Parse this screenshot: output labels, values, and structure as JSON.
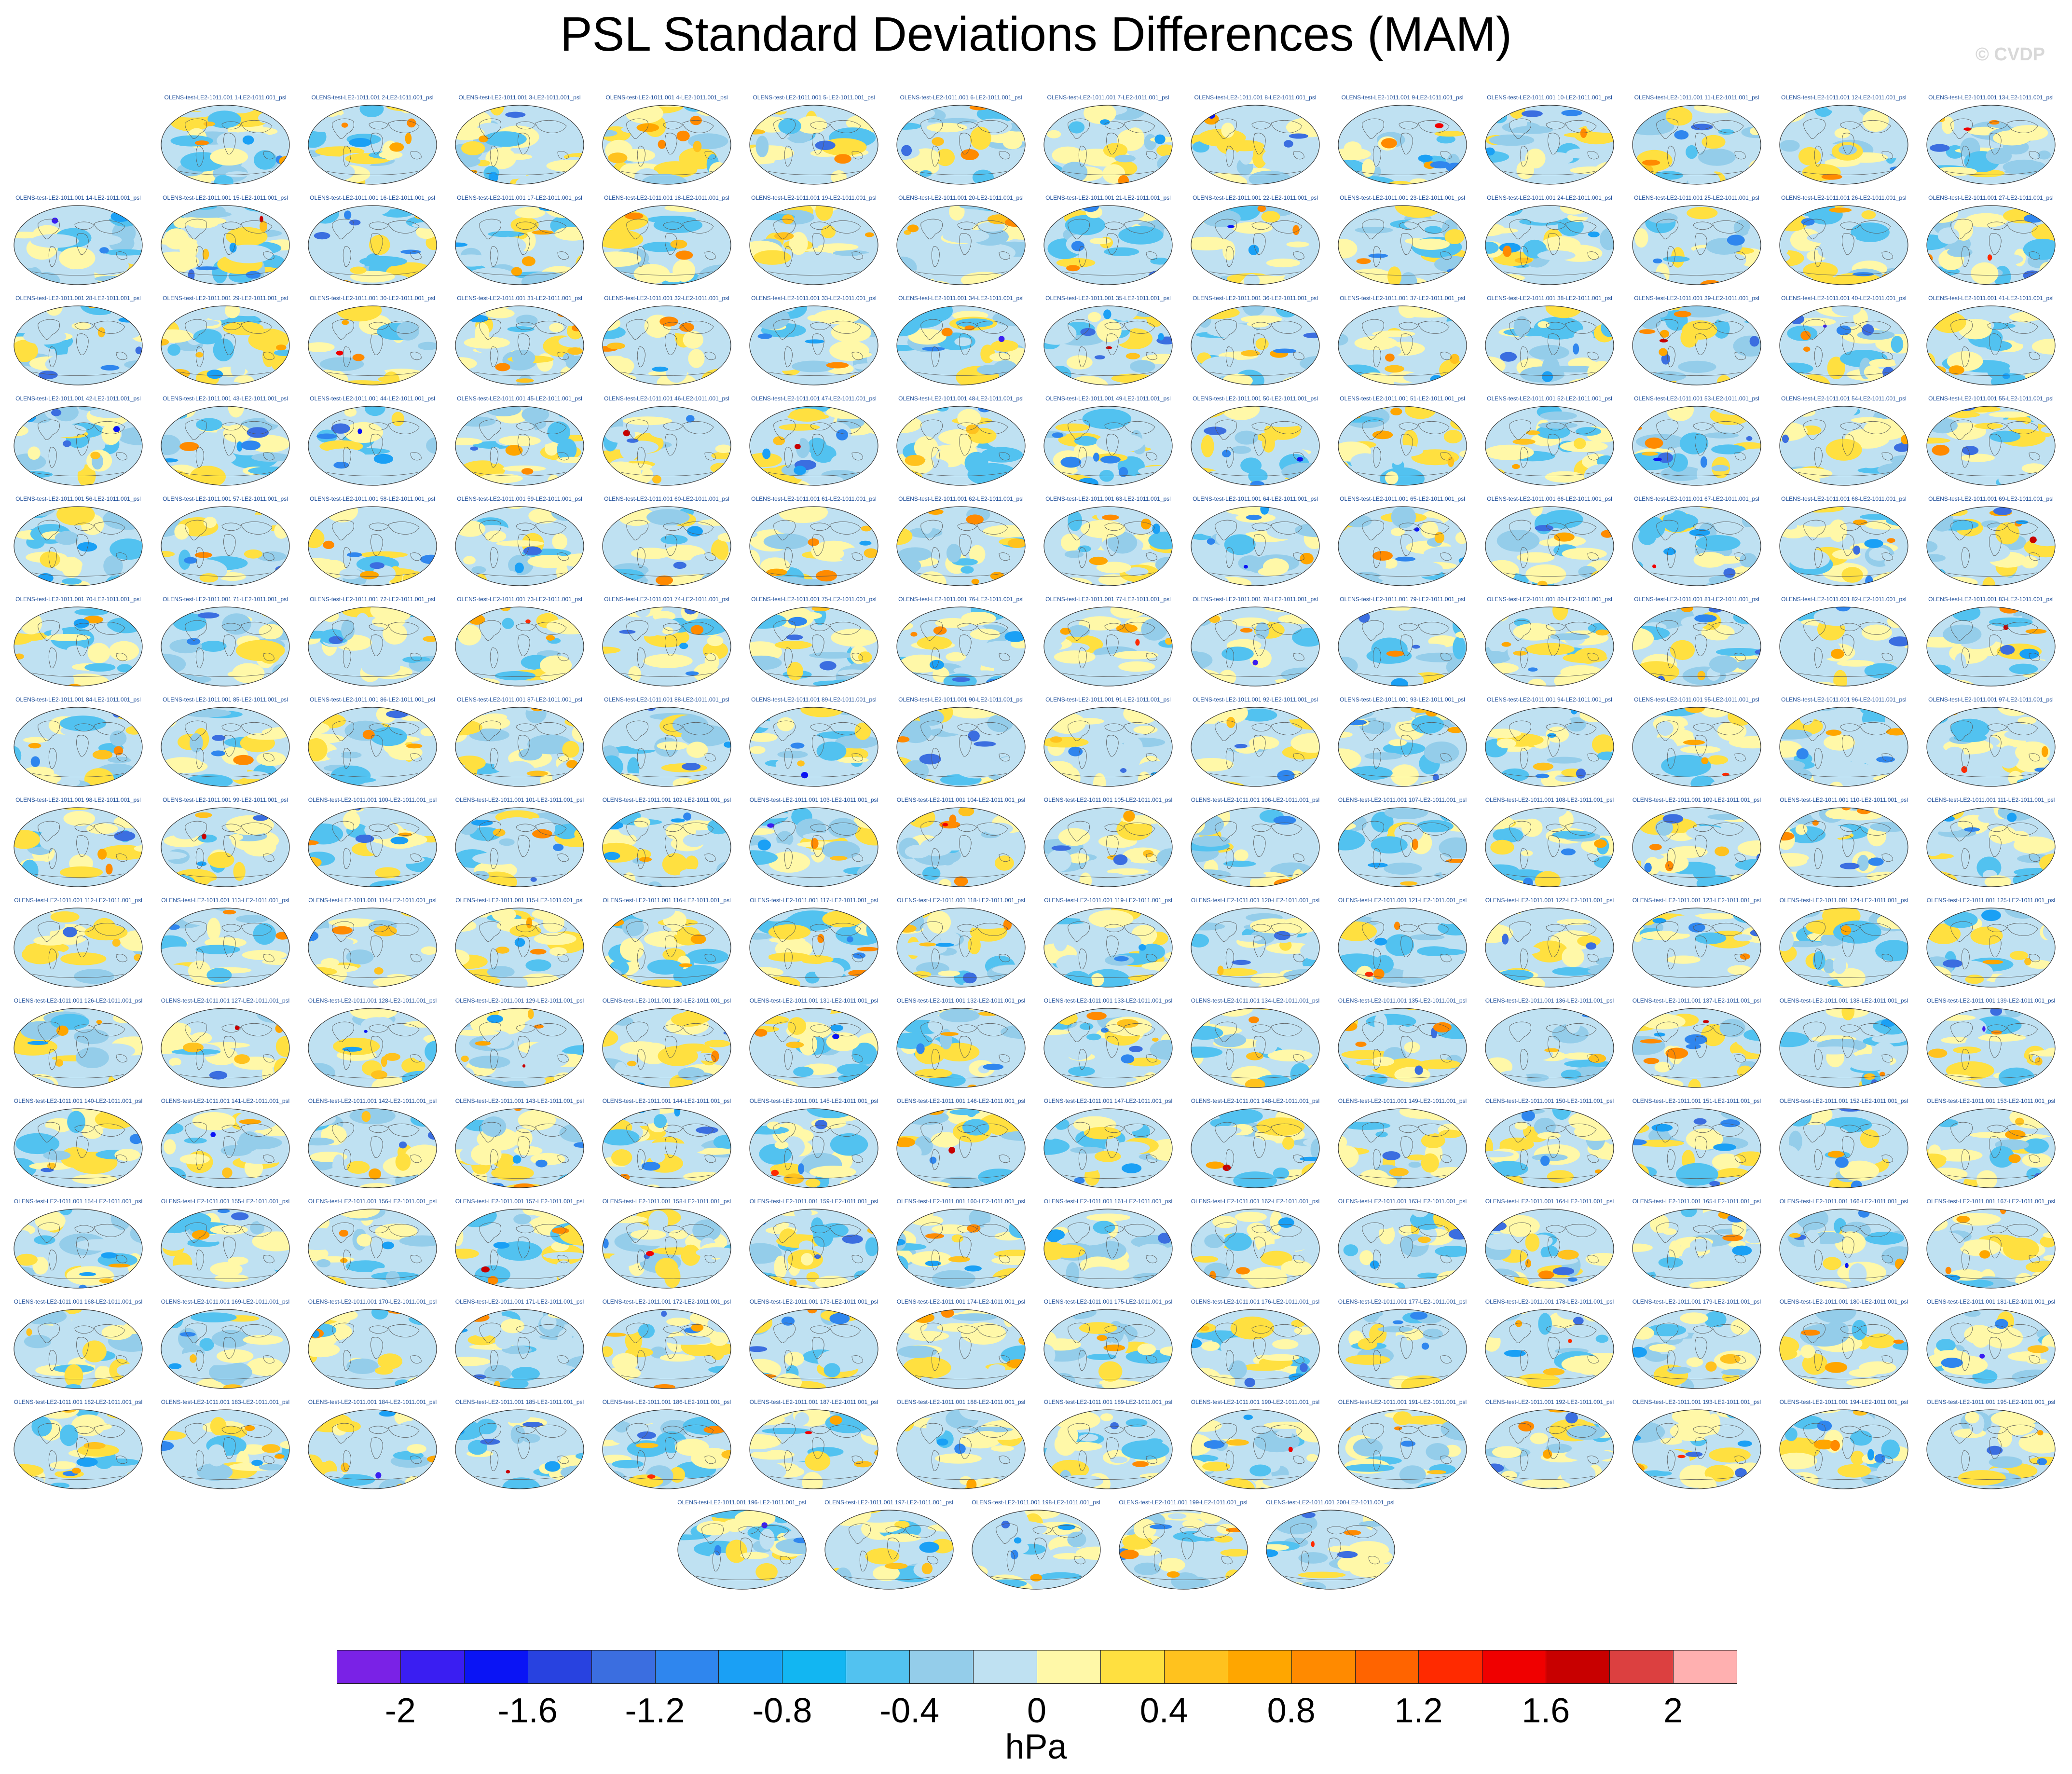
{
  "title": "PSL Standard Deviations Differences (MAM)",
  "watermark": "© CVDP",
  "panel_label_prefix": "OLENS-test-LE2-1011.001 ",
  "panel_label_mid": "-LE2-1011.001_psl",
  "colors": {
    "land_outline": "#555555",
    "ocean_base": "#f7f7f7",
    "label_color": "#1f4f9a"
  },
  "chart_data": {
    "type": "heatmap",
    "title": "PSL Standard Deviations Differences (MAM)",
    "panel_count": 200,
    "panels_per_row": 14,
    "panel_labels_pattern": "OLENS-test-LE2-1011.001 N-LE2-1011.001_psl",
    "colorbar": {
      "units": "hPa",
      "levels": [
        -2.2,
        -2,
        -1.8,
        -1.6,
        -1.4,
        -1.2,
        -1,
        -0.8,
        -0.6,
        -0.4,
        -0.2,
        0,
        0.2,
        0.4,
        0.6,
        0.8,
        1,
        1.2,
        1.4,
        1.6,
        1.8,
        2,
        2.2
      ],
      "colors": [
        "#7a22e6",
        "#3a1ef2",
        "#0a14f5",
        "#2842e0",
        "#3b6ee0",
        "#2f86ee",
        "#1aa0f5",
        "#12b6f2",
        "#52c2f0",
        "#94cdea",
        "#bfe1f2",
        "#fff8a8",
        "#ffe040",
        "#ffc21e",
        "#ffa600",
        "#ff8a00",
        "#ff6400",
        "#ff2a00",
        "#f00000",
        "#c80000",
        "#dc4040",
        "#ffb0b0"
      ],
      "tick_labels": [
        "-2",
        "-1.6",
        "-1.2",
        "-0.8",
        "-0.4",
        "0",
        "0.4",
        "0.8",
        "1.2",
        "1.6",
        "2"
      ],
      "tick_values": [
        -2,
        -1.6,
        -1.2,
        -0.8,
        -0.4,
        0,
        0.4,
        0.8,
        1.2,
        1.6,
        2
      ]
    }
  }
}
